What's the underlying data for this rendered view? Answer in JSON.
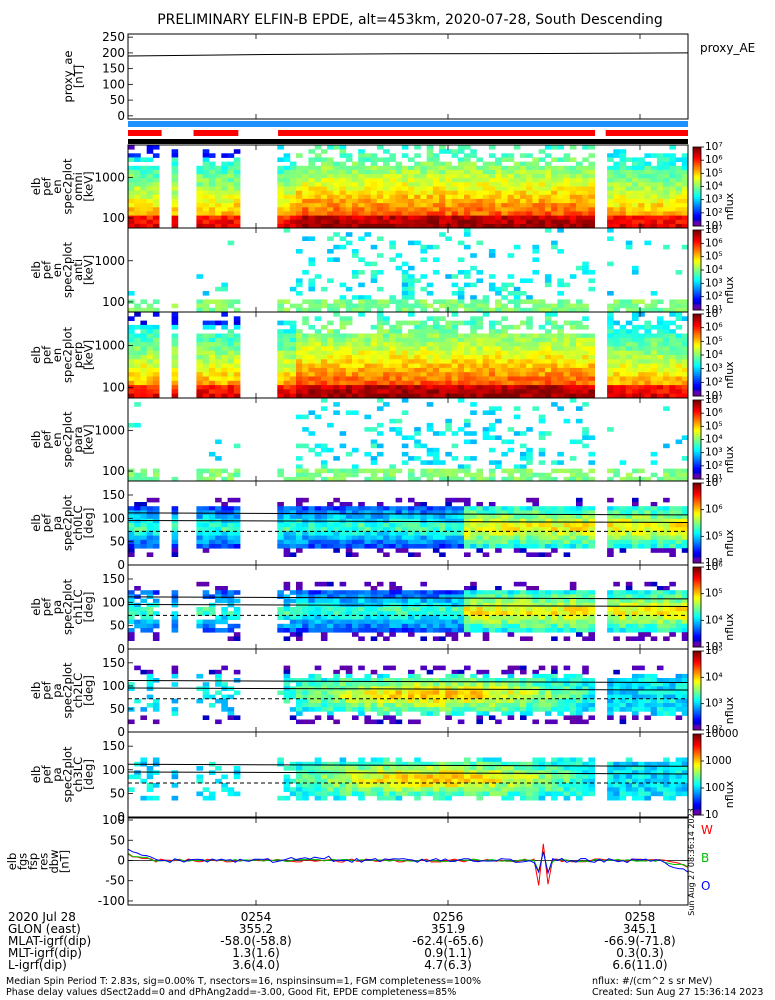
{
  "title": "PRELIMINARY ELFIN-B EPDE, alt=453km, 2020-07-28, South Descending",
  "colors": {
    "red_bar": "#ff0000",
    "blue_bar": "#1e90ff",
    "black_bar": "#000000",
    "black_line": "#000000"
  },
  "chart_data": [
    {
      "type": "line",
      "panel": "proxy_ae",
      "ylabel": [
        "proxy_ae",
        "[nT]"
      ],
      "legend": "proxy_AE",
      "ylim": [
        -10,
        260
      ],
      "yticks": [
        "250",
        "200",
        "150",
        "100",
        "50",
        "0"
      ],
      "x": [
        0,
        0.25,
        0.5,
        0.75,
        1.0
      ],
      "values": [
        190,
        195,
        197,
        198,
        200
      ]
    },
    {
      "type": "bar",
      "panel": "status bars",
      "bars": [
        {
          "color": "blue",
          "segments": [
            [
              0.0,
              1.0
            ]
          ]
        },
        {
          "color": "red",
          "segments": [
            [
              0.0,
              0.06
            ],
            [
              0.117,
              0.197
            ],
            [
              0.268,
              0.834
            ],
            [
              0.853,
              1.0
            ]
          ]
        },
        {
          "color": "black",
          "segments": [
            [
              0.0,
              1.0
            ]
          ]
        }
      ]
    },
    {
      "type": "heatmap",
      "panel": "pef omni",
      "ylabel": [
        "elb",
        "pef",
        "en",
        "spec2plot",
        "omni",
        "[keV]"
      ],
      "yscale": "log",
      "yticks": [
        "1000",
        "100"
      ],
      "colorbar": {
        "label": "nflux",
        "scale": "log",
        "ticks": [
          "10⁷",
          "10⁶",
          "10⁵",
          "10⁴",
          "10³",
          "10²",
          "10¹"
        ]
      },
      "gaps": [
        [
          0.06,
          0.083
        ],
        [
          0.094,
          0.117
        ],
        [
          0.197,
          0.24
        ],
        [
          0.244,
          0.268
        ],
        [
          0.834,
          0.853
        ]
      ]
    },
    {
      "type": "heatmap",
      "panel": "pef anti",
      "ylabel": [
        "elb",
        "pef",
        "en",
        "spec2plot",
        "anti",
        "[keV]"
      ],
      "yscale": "log",
      "yticks": [
        "1000",
        "100"
      ],
      "colorbar": {
        "label": "nflux",
        "scale": "log",
        "ticks": [
          "10⁷",
          "10⁶",
          "10⁵",
          "10⁴",
          "10³",
          "10²",
          "10¹"
        ]
      }
    },
    {
      "type": "heatmap",
      "panel": "pef perp",
      "ylabel": [
        "elb",
        "pef",
        "en",
        "spec2plot",
        "perp",
        "[keV]"
      ],
      "yscale": "log",
      "yticks": [
        "1000",
        "100"
      ],
      "colorbar": {
        "label": "nflux",
        "scale": "log",
        "ticks": [
          "10⁷",
          "10⁶",
          "10⁵",
          "10⁴",
          "10³",
          "10²",
          "10¹"
        ]
      }
    },
    {
      "type": "heatmap",
      "panel": "pef para",
      "ylabel": [
        "elb",
        "pef",
        "en",
        "spec2plot",
        "para",
        "[keV]"
      ],
      "yscale": "log",
      "yticks": [
        "1000",
        "100"
      ],
      "colorbar": {
        "label": "nflux",
        "scale": "log",
        "ticks": [
          "10⁷",
          "10⁶",
          "10⁵",
          "10⁴",
          "10³",
          "10²",
          "10¹"
        ]
      }
    },
    {
      "type": "heatmap",
      "panel": "pef ch0LC",
      "ylabel": [
        "elb",
        "pef",
        "pa",
        "spec2plot",
        "ch0LC",
        "[deg]"
      ],
      "ylim": [
        0,
        180
      ],
      "yticks": [
        "150",
        "100",
        "50",
        "0"
      ],
      "colorbar": {
        "label": "nflux",
        "scale": "log",
        "ticks": [
          "10⁷",
          "10⁶",
          "10⁵",
          "10⁴"
        ]
      }
    },
    {
      "type": "heatmap",
      "panel": "pef ch1LC",
      "ylabel": [
        "elb",
        "pef",
        "pa",
        "spec2plot",
        "ch1LC",
        "[deg]"
      ],
      "ylim": [
        0,
        180
      ],
      "yticks": [
        "150",
        "100",
        "50",
        "0"
      ],
      "colorbar": {
        "label": "nflux",
        "scale": "log",
        "ticks": [
          "10⁶",
          "10⁵",
          "10⁴",
          "10³"
        ]
      }
    },
    {
      "type": "heatmap",
      "panel": "pef ch2LC",
      "ylabel": [
        "elb",
        "pef",
        "pa",
        "spec2plot",
        "ch2LC",
        "[deg]"
      ],
      "ylim": [
        0,
        180
      ],
      "yticks": [
        "150",
        "100",
        "50",
        "0"
      ],
      "colorbar": {
        "label": "nflux",
        "scale": "log",
        "ticks": [
          "10⁵",
          "10⁴",
          "10³",
          "10²"
        ]
      }
    },
    {
      "type": "heatmap",
      "panel": "pef ch3LC",
      "ylabel": [
        "elb",
        "pef",
        "pa",
        "spec2plot",
        "ch3LC",
        "[deg]"
      ],
      "ylim": [
        0,
        180
      ],
      "yticks": [
        "150",
        "100",
        "50",
        "0"
      ],
      "colorbar": {
        "label": "nflux",
        "scale": "log",
        "ticks": [
          "10000",
          "1000",
          "100",
          "10"
        ]
      }
    },
    {
      "type": "line",
      "panel": "fgs res dbw",
      "ylabel": [
        "elb",
        "fgs",
        "fsp",
        "res",
        "dbw",
        "[nT]"
      ],
      "ylim": [
        -110,
        105
      ],
      "yticks": [
        "100",
        "50",
        "0",
        "-50",
        "-100"
      ],
      "legend": [
        "W",
        "B",
        "O"
      ],
      "timestamp": "Sun Aug 27 08:36:14 2023"
    }
  ],
  "xaxis": {
    "date": "2020 Jul 28",
    "ticks": [
      "0254",
      "0256",
      "0258"
    ],
    "rows": [
      {
        "label": "GLON (east)",
        "values": [
          "355.2",
          "351.9",
          "345.1"
        ]
      },
      {
        "label": "MLAT-igrf(dip)",
        "values": [
          "-58.0(-58.8)",
          "-62.4(-65.6)",
          "-66.9(-71.8)"
        ]
      },
      {
        "label": "MLT-igrf(dip)",
        "values": [
          "1.3(1.6)",
          "0.9(1.1)",
          "0.3(0.3)"
        ]
      },
      {
        "label": "L-igrf(dip)",
        "values": [
          "3.6(4.0)",
          "4.7(6.3)",
          "6.6(11.0)"
        ]
      }
    ]
  },
  "footer": {
    "left1": "Median Spin Period T: 2.83s, sig=0.00% T, nsectors=16, nspinsinsum=1, FGM completeness=100%",
    "left2": "Phase delay values dSect2add=0 and dPhAng2add=-3.00, Good Fit, EPDE completeness=85%",
    "right1": "nflux: #/(cm^2 s sr MeV)",
    "right2": "Created: Sun Aug 27 15:36:14 2023"
  }
}
